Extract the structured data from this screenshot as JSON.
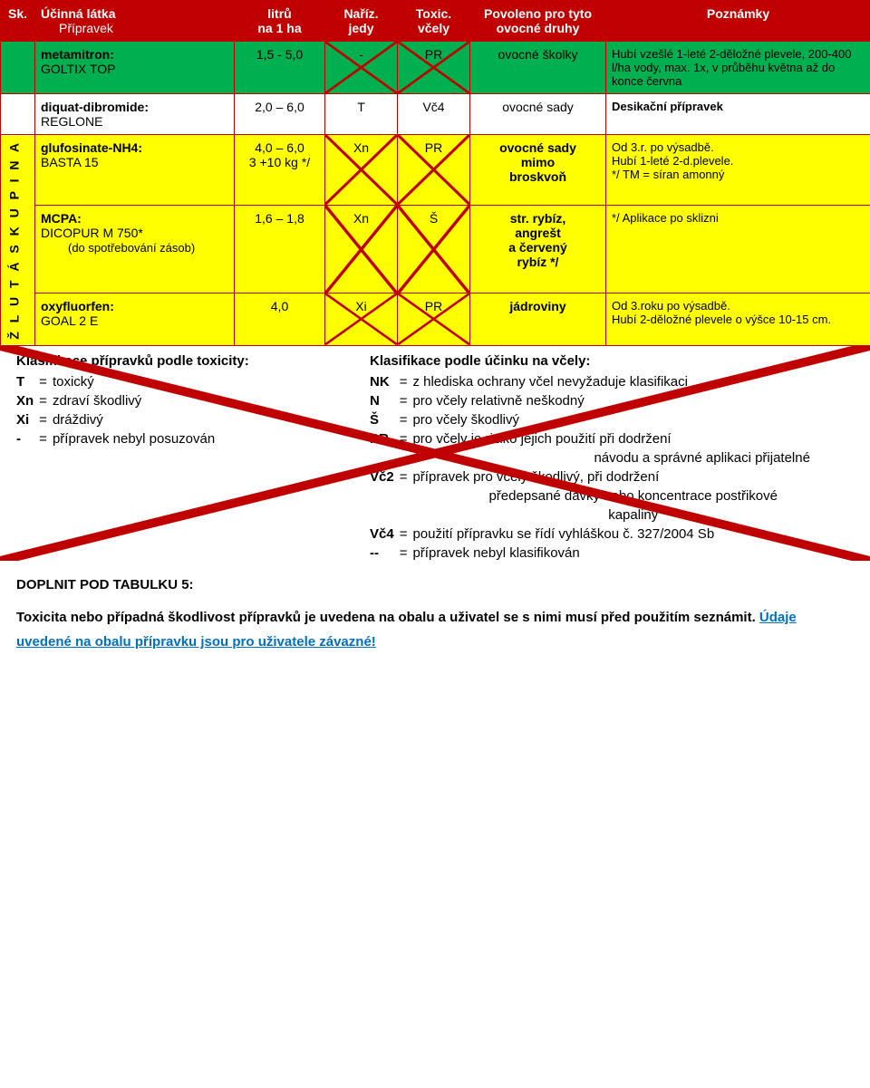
{
  "colors": {
    "red": "#c00000",
    "green": "#00b050",
    "yellow": "#ffff00",
    "blue": "#0070c0"
  },
  "header": {
    "c0": "Sk.",
    "c1a": "Účinná látka",
    "c1b": "Přípravek",
    "c2a": "litrů",
    "c2b": "na 1 ha",
    "c3a": "Naříz.",
    "c3b": "jedy",
    "c4a": "Toxic.",
    "c4b": "včely",
    "c5": "Povoleno pro tyto ovocné druhy",
    "c6": "Poznámky"
  },
  "sideLabel": "Ž L U T Á  S K U P I N A",
  "rows": [
    {
      "cls": "row-green",
      "name_active": "metamitron:",
      "name_prod": "GOLTIX TOP",
      "dose": "1,5 - 5,0",
      "tox": "-",
      "bee": "PR",
      "crop": "ovocné školky",
      "notes": "Hubí vzešlé 1-leté 2-děložné plevele, 200-400 l/ha vody, max. 1x, v průběhu května až do konce června",
      "x_tox": true,
      "x_bee": true
    },
    {
      "cls": "row-white",
      "name_active": "diquat-dibromide:",
      "name_prod": "REGLONE",
      "dose": "2,0 – 6,0",
      "tox": "T",
      "bee": "Vč4",
      "crop": "ovocné sady",
      "notes": "Desikační přípravek"
    },
    {
      "cls": "row-yellow",
      "name_active": "glufosinate-NH4:",
      "name_prod": "BASTA 15",
      "dose": "4,0 – 6,0\n3 +10 kg */",
      "tox": "Xn",
      "bee": "PR",
      "crop": "ovocné sady\nmimo\nbroskvoň",
      "notes": "Od 3.r. po výsadbě.\nHubí 1-leté 2-d.plevele.\n*/ TM = síran amonný",
      "x_tox": true,
      "x_bee": true
    },
    {
      "cls": "row-yellow",
      "name_active": "MCPA:",
      "name_prod": "DICOPUR M 750*",
      "name_extra": "(do spotřebování zásob)",
      "dose": "1,6 – 1,8",
      "tox": "Xn",
      "bee": "Š",
      "crop": "str. rybíz,\nangrešt\na červený\nrybíz */",
      "notes": "*/ Aplikace po sklizni",
      "x_tox": true,
      "x_bee": true
    },
    {
      "cls": "row-yellow",
      "name_active": "oxyfluorfen:",
      "name_prod": "GOAL 2 E",
      "dose": "4,0",
      "tox": "Xi",
      "bee": "PR",
      "crop": "jádroviny",
      "notes": "Od 3.roku po výsadbě.\nHubí 2-děložné plevele o výšce 10-15 cm.",
      "x_tox": true,
      "x_bee": true
    }
  ],
  "legend": {
    "leftTitle": "Klasifikace přípravků podle toxicity:",
    "rightTitle": "Klasifikace podle účinku na včely:",
    "left": [
      {
        "k": "T",
        "v": "toxický"
      },
      {
        "k": "Xn",
        "v": "zdraví škodlivý"
      },
      {
        "k": "Xi",
        "v": "dráždivý"
      },
      {
        "k": "-",
        "v": "přípravek nebyl posuzován"
      }
    ],
    "right": [
      {
        "k": "NK",
        "v": "z hlediska ochrany včel nevyžaduje klasifikaci"
      },
      {
        "k": "N",
        "v": "pro včely relativně neškodný"
      },
      {
        "k": "Š",
        "v": "pro včely škodlivý"
      },
      {
        "k": "PR",
        "v": "pro včely je riziko jejich použití při dodržení"
      },
      {
        "k": "",
        "v": "návodu a správné aplikaci přijatelné",
        "style": "indent"
      },
      {
        "k": "Vč2",
        "v": "přípravek pro včely škodlivý, při dodržení"
      },
      {
        "k": "",
        "v": "předepsané dávky nebo koncentrace postřikové",
        "style": "center"
      },
      {
        "k": "",
        "v": "kapaliny",
        "style": "center"
      },
      {
        "k": "Vč4",
        "v": "použití přípravku se řídí vyhláškou č. 327/2004 Sb"
      },
      {
        "k": "--",
        "v": "přípravek nebyl klasifikován"
      }
    ]
  },
  "section": {
    "title": "DOPLNIT POD TABULKU 5:",
    "p1a": "Toxicita nebo případná škodlivost přípravků je uvedena na obalu a uživatel se s nimi musí před použitím seznámit. ",
    "p1b": "Údaje uvedené na obalu přípravku jsou pro uživatele závazné!"
  }
}
